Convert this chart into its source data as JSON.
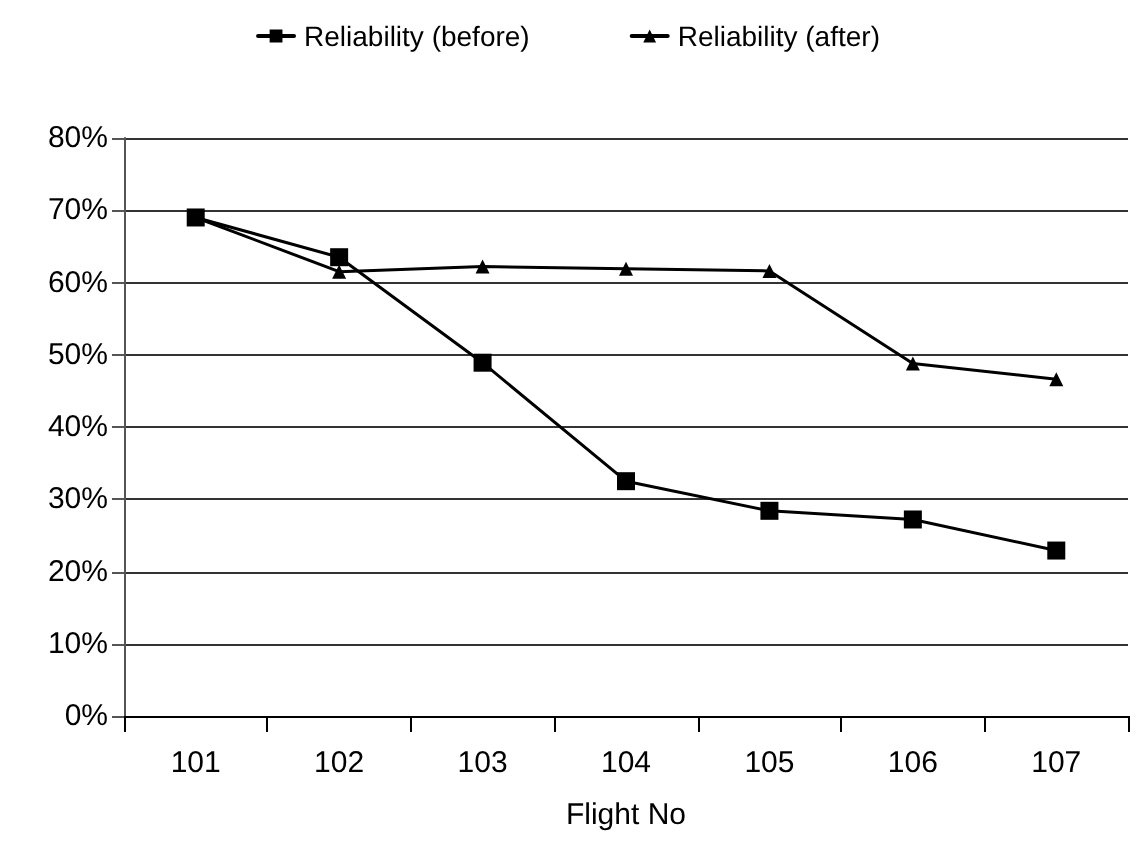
{
  "chart_data": {
    "type": "line",
    "xlabel": "Flight No",
    "categories": [
      "101",
      "102",
      "103",
      "104",
      "105",
      "106",
      "107"
    ],
    "series": [
      {
        "name": "Reliability (before)",
        "color": "#000000",
        "marker": "square",
        "values": [
          69.0,
          63.5,
          48.9,
          32.5,
          28.4,
          27.2,
          22.9
        ]
      },
      {
        "name": "Reliability (after)",
        "color": "#000000",
        "marker": "triangle",
        "values": [
          69.0,
          61.5,
          62.2,
          61.9,
          61.6,
          48.8,
          46.6
        ]
      }
    ],
    "ylim": [
      0,
      80
    ],
    "yticks": [
      {
        "value": 0,
        "label": "0%"
      },
      {
        "value": 10,
        "label": "10%"
      },
      {
        "value": 20,
        "label": "20%"
      },
      {
        "value": 30,
        "label": "30%"
      },
      {
        "value": 40,
        "label": "40%"
      },
      {
        "value": 50,
        "label": "50%"
      },
      {
        "value": 60,
        "label": "60%"
      },
      {
        "value": 70,
        "label": "70%"
      },
      {
        "value": 80,
        "label": "80%"
      }
    ],
    "grid": "y",
    "legend": "top"
  }
}
